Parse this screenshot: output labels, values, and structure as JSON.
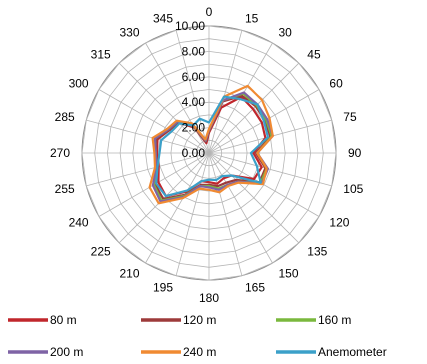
{
  "chart_data": {
    "type": "radar",
    "angles": [
      "0",
      "15",
      "30",
      "45",
      "60",
      "75",
      "90",
      "105",
      "120",
      "135",
      "150",
      "165",
      "180",
      "195",
      "210",
      "225",
      "240",
      "255",
      "270",
      "285",
      "300",
      "315",
      "330",
      "345"
    ],
    "radial_ticks": [
      "0.00",
      "2.00",
      "4.00",
      "6.00",
      "8.00",
      "10.00"
    ],
    "rmax": 10,
    "grid": true,
    "legend_position": "bottom",
    "series": [
      {
        "name": "80 m",
        "color": "#c0262c",
        "values": [
          1.6,
          3.7,
          5.1,
          4.9,
          4.8,
          4.6,
          3.5,
          4.3,
          4.1,
          2.5,
          2.3,
          2.5,
          2.3,
          2.3,
          3.5,
          4.8,
          4.6,
          4.1,
          4.1,
          4.2,
          3.6,
          3.4,
          2.3,
          0.8
        ]
      },
      {
        "name": "120 m",
        "color": "#9d3a3a",
        "values": [
          1.7,
          4.2,
          5.2,
          5.2,
          5.1,
          5.0,
          3.7,
          4.6,
          4.6,
          3.0,
          2.7,
          2.7,
          2.5,
          2.6,
          3.8,
          5.1,
          4.9,
          4.2,
          4.2,
          4.3,
          3.6,
          3.4,
          2.4,
          0.9
        ]
      },
      {
        "name": "160 m",
        "color": "#7ab83d",
        "values": [
          1.8,
          4.3,
          5.4,
          5.3,
          5.2,
          5.1,
          3.8,
          4.7,
          4.7,
          3.2,
          2.9,
          2.9,
          2.6,
          2.7,
          3.9,
          5.3,
          5.0,
          4.3,
          4.2,
          4.4,
          3.7,
          3.5,
          2.5,
          1.0
        ]
      },
      {
        "name": "200 m",
        "color": "#7f63a5",
        "values": [
          1.8,
          4.3,
          5.5,
          5.4,
          5.3,
          5.2,
          3.8,
          4.8,
          4.8,
          3.2,
          2.9,
          3.0,
          2.7,
          2.7,
          4.0,
          5.4,
          5.1,
          4.3,
          4.2,
          4.4,
          3.7,
          3.5,
          2.6,
          1.0
        ]
      },
      {
        "name": "240 m",
        "color": "#f08a32",
        "values": [
          1.9,
          4.6,
          6.1,
          5.9,
          5.5,
          5.2,
          3.8,
          4.7,
          4.9,
          3.3,
          3.0,
          3.2,
          2.9,
          2.9,
          4.1,
          5.6,
          5.4,
          4.4,
          4.3,
          4.6,
          3.8,
          3.6,
          2.7,
          1.1
        ]
      },
      {
        "name": "Anemometer",
        "color": "#3ba0c9",
        "values": [
          2.4,
          4.6,
          4.9,
          5.4,
          5.0,
          4.8,
          3.3,
          3.9,
          4.7,
          2.5,
          2.1,
          2.2,
          2.1,
          2.3,
          3.4,
          4.8,
          4.8,
          4.2,
          3.9,
          3.9,
          3.4,
          3.3,
          2.5,
          2.8
        ]
      }
    ]
  }
}
